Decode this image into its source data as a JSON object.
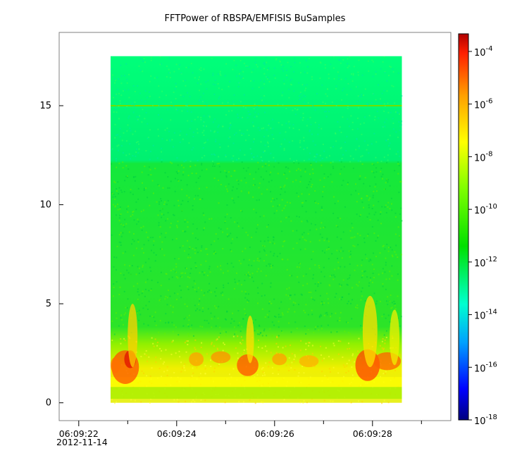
{
  "chart_data": {
    "type": "heatmap",
    "title": "FFTPower of RBSPA/EMFISIS  BuSamples",
    "xlabel": "",
    "ylabel": "",
    "x_date_label": "2012-11-14",
    "x_ticks": [
      {
        "t": 22,
        "label": "06:09:22"
      },
      {
        "t": 24,
        "label": "06:09:24"
      },
      {
        "t": 26,
        "label": "06:09:26"
      },
      {
        "t": 28,
        "label": "06:09:28"
      }
    ],
    "x_minor_ticks": [
      23,
      25,
      27,
      29
    ],
    "xlim": [
      21.6,
      29.6
    ],
    "data_xrange": [
      22.65,
      28.6
    ],
    "y_ticks": [
      0,
      5,
      10,
      15
    ],
    "ylim": [
      -0.9,
      18.7
    ],
    "data_yrange": [
      0,
      17.5
    ],
    "colorbar": {
      "scale": "log",
      "range": [
        "1e-18",
        "1e-4"
      ],
      "ticks": [
        {
          "base": "10",
          "exp": "-4"
        },
        {
          "base": "10",
          "exp": "-6"
        },
        {
          "base": "10",
          "exp": "-8"
        },
        {
          "base": "10",
          "exp": "-10"
        },
        {
          "base": "10",
          "exp": "-12"
        },
        {
          "base": "10",
          "exp": "-14"
        },
        {
          "base": "10",
          "exp": "-16"
        },
        {
          "base": "10",
          "exp": "-18"
        }
      ],
      "colors": [
        "#00007f",
        "#0000ff",
        "#00a0ff",
        "#00ffd0",
        "#00e000",
        "#80ff00",
        "#ffff00",
        "#ffa000",
        "#ff2000",
        "#b00000"
      ]
    },
    "grid": false
  }
}
